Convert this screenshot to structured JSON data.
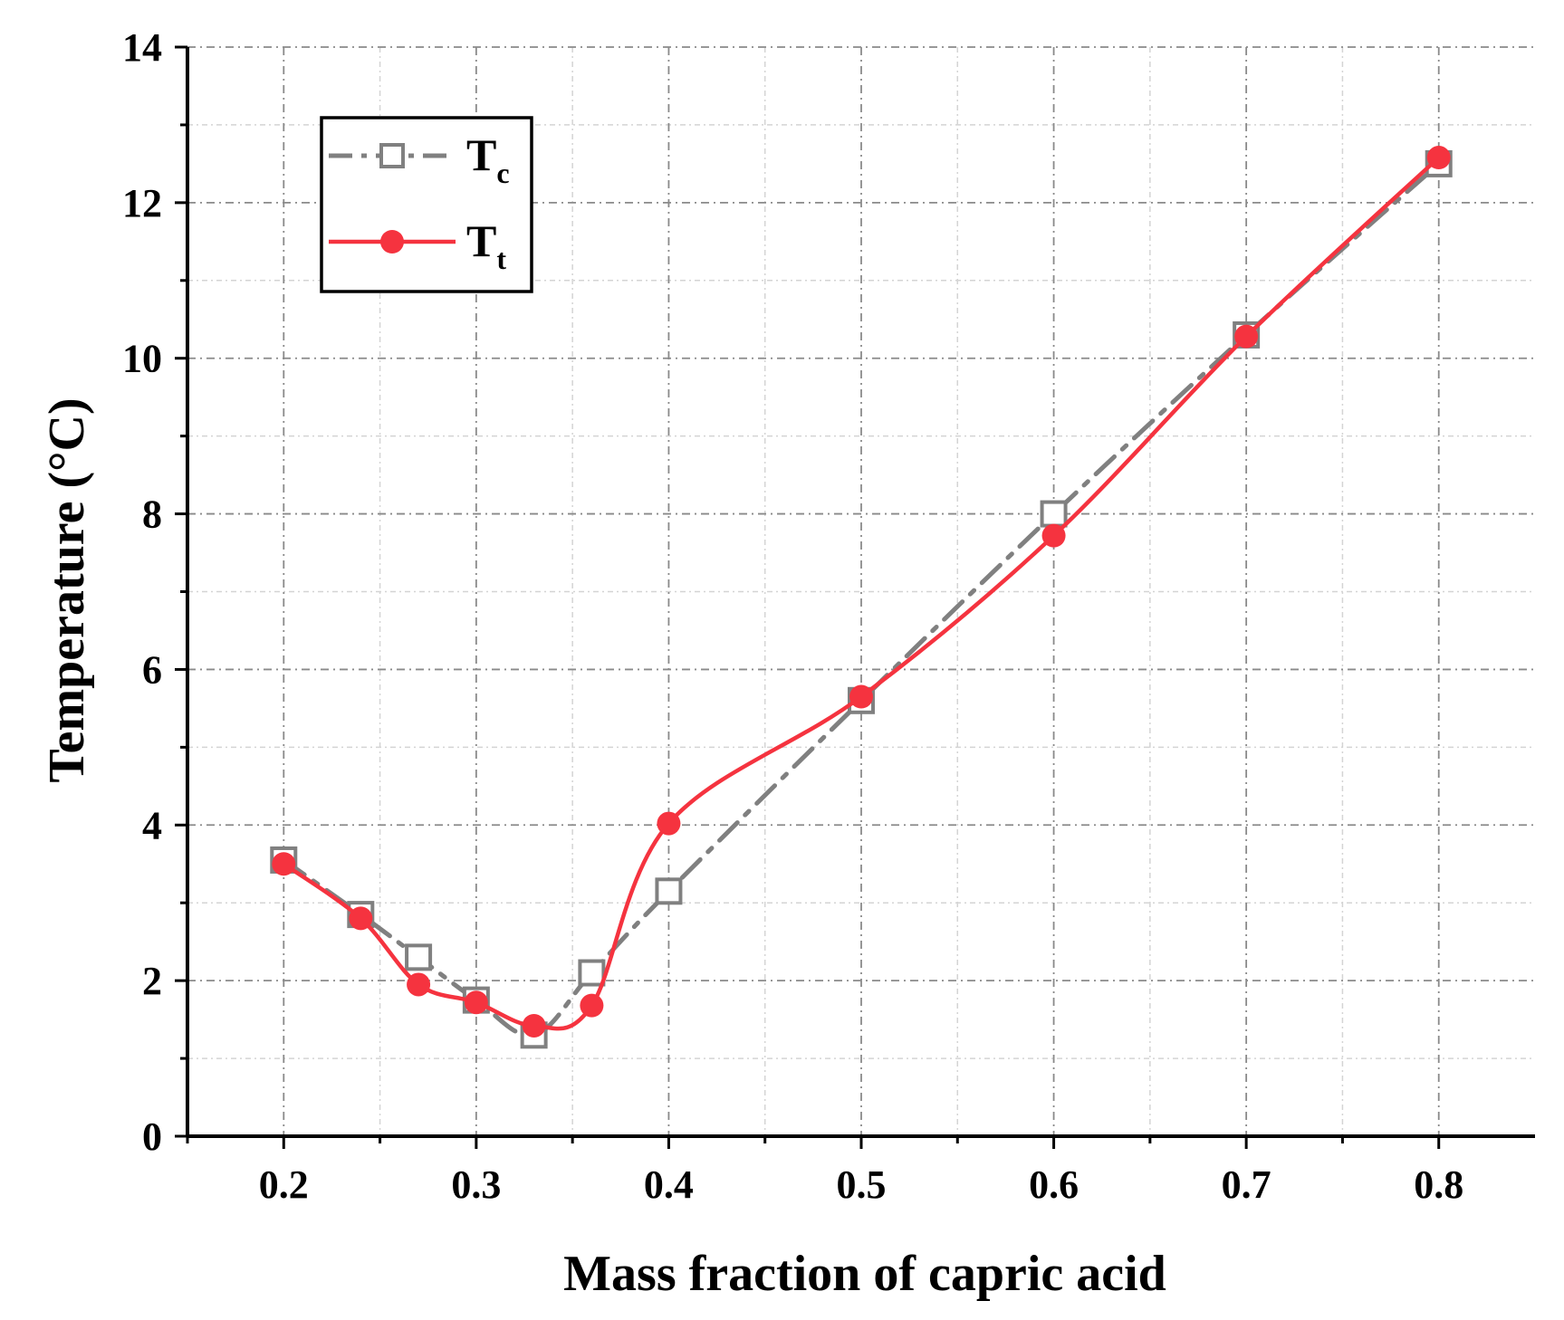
{
  "chart_data": {
    "type": "line",
    "title": "",
    "xlabel": "Mass fraction of capric acid",
    "ylabel": "Temperature (°C)",
    "xlim": [
      0.15,
      0.85
    ],
    "ylim": [
      0,
      14
    ],
    "xticks": [
      0.2,
      0.3,
      0.4,
      0.5,
      0.6,
      0.7,
      0.8
    ],
    "xtick_labels": [
      "0.2",
      "0.3",
      "0.4",
      "0.5",
      "0.6",
      "0.7",
      "0.8"
    ],
    "yticks": [
      0,
      2,
      4,
      6,
      8,
      10,
      12,
      14
    ],
    "ytick_labels": [
      "0",
      "2",
      "4",
      "6",
      "8",
      "10",
      "12",
      "14"
    ],
    "grid": true,
    "legend_position": "top-left",
    "series": [
      {
        "name": "Tc",
        "legend_main": "T",
        "legend_sub": "c",
        "color": "#808080",
        "line_style": "dash-dot",
        "marker": "open-square",
        "x": [
          0.2,
          0.24,
          0.27,
          0.3,
          0.33,
          0.36,
          0.4,
          0.5,
          0.6,
          0.7,
          0.8
        ],
        "y": [
          3.55,
          2.85,
          2.3,
          1.75,
          1.3,
          2.1,
          3.15,
          5.6,
          8.0,
          10.3,
          12.5
        ]
      },
      {
        "name": "Tt",
        "legend_main": "T",
        "legend_sub": "t",
        "color": "#f5333f",
        "line_style": "solid-smooth",
        "marker": "filled-circle",
        "x": [
          0.2,
          0.24,
          0.27,
          0.3,
          0.33,
          0.36,
          0.4,
          0.5,
          0.6,
          0.7,
          0.8
        ],
        "y": [
          3.5,
          2.8,
          1.95,
          1.72,
          1.42,
          1.68,
          4.02,
          5.65,
          7.72,
          10.28,
          12.58
        ]
      }
    ]
  }
}
